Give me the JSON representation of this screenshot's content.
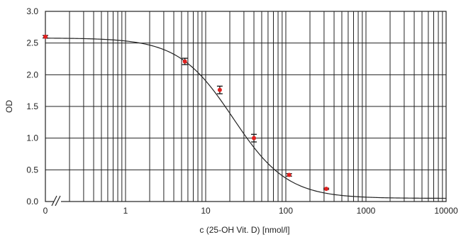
{
  "chart_data": {
    "type": "scatter",
    "xlabel": "c (25-OH Vit. D) [nmol/l]",
    "ylabel": "OD",
    "x_scale": "log",
    "x_axis_break": true,
    "xlim": [
      0.1,
      10000
    ],
    "ylim": [
      0,
      3.0
    ],
    "grid": true,
    "x_ticks": [
      {
        "value": 0,
        "label": "0"
      },
      {
        "value": 1,
        "label": "1"
      },
      {
        "value": 10,
        "label": "10"
      },
      {
        "value": 100,
        "label": "100"
      },
      {
        "value": 1000,
        "label": "1000"
      },
      {
        "value": 10000,
        "label": "10000"
      }
    ],
    "y_ticks": [
      {
        "value": 0,
        "label": "0.0"
      },
      {
        "value": 0.5,
        "label": "0.5"
      },
      {
        "value": 1.0,
        "label": "1.0"
      },
      {
        "value": 1.5,
        "label": "1.5"
      },
      {
        "value": 2.0,
        "label": "2.0"
      },
      {
        "value": 2.5,
        "label": "2.5"
      },
      {
        "value": 3.0,
        "label": "3.0"
      }
    ],
    "points": [
      {
        "x": 0,
        "y": 2.6,
        "err": 0.02
      },
      {
        "x": 5.5,
        "y": 2.21,
        "err": 0.05
      },
      {
        "x": 15,
        "y": 1.76,
        "err": 0.06
      },
      {
        "x": 40,
        "y": 1.0,
        "err": 0.06
      },
      {
        "x": 110,
        "y": 0.42,
        "err": 0.02
      },
      {
        "x": 320,
        "y": 0.2,
        "err": 0.01
      }
    ],
    "fit_curve": {
      "top": 2.58,
      "bottom": 0.05,
      "ec50": 22,
      "hill": 1.28
    },
    "colors": {
      "points": "#e0201e",
      "error_bars": "#111111",
      "curve": "#222222",
      "grid": "#222222",
      "frame": "#222222"
    }
  }
}
